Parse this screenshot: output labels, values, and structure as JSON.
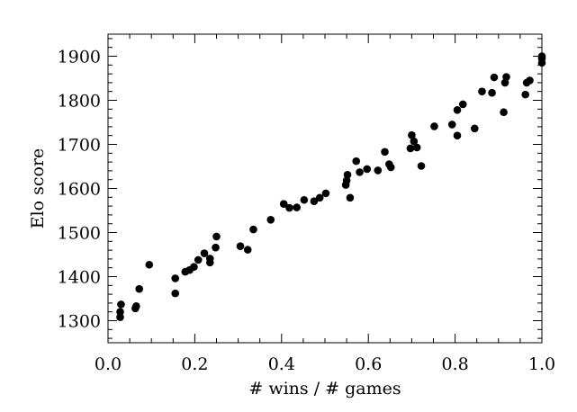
{
  "chart_data": {
    "type": "scatter",
    "xlabel": "# wins / # games",
    "ylabel": "Elo score",
    "xlim": [
      0.0,
      1.0
    ],
    "ylim": [
      1250,
      1950
    ],
    "xticks": [
      0.0,
      0.2,
      0.4,
      0.6,
      0.8,
      1.0
    ],
    "xtick_labels": [
      "0.0",
      "0.2",
      "0.4",
      "0.6",
      "0.8",
      "1.0"
    ],
    "yticks": [
      1300,
      1400,
      1500,
      1600,
      1700,
      1800,
      1900
    ],
    "ytick_labels": [
      "1300",
      "1400",
      "1500",
      "1600",
      "1700",
      "1800",
      "1900"
    ],
    "grid": false,
    "marker_color": "#000000",
    "points": [
      {
        "x": 0.028,
        "y": 1308
      },
      {
        "x": 0.028,
        "y": 1320
      },
      {
        "x": 0.03,
        "y": 1337
      },
      {
        "x": 0.063,
        "y": 1328
      },
      {
        "x": 0.065,
        "y": 1333
      },
      {
        "x": 0.072,
        "y": 1372
      },
      {
        "x": 0.095,
        "y": 1427
      },
      {
        "x": 0.155,
        "y": 1362
      },
      {
        "x": 0.155,
        "y": 1396
      },
      {
        "x": 0.178,
        "y": 1411
      },
      {
        "x": 0.188,
        "y": 1415
      },
      {
        "x": 0.198,
        "y": 1422
      },
      {
        "x": 0.208,
        "y": 1438
      },
      {
        "x": 0.222,
        "y": 1453
      },
      {
        "x": 0.235,
        "y": 1432
      },
      {
        "x": 0.235,
        "y": 1441
      },
      {
        "x": 0.248,
        "y": 1466
      },
      {
        "x": 0.25,
        "y": 1491
      },
      {
        "x": 0.305,
        "y": 1469
      },
      {
        "x": 0.322,
        "y": 1461
      },
      {
        "x": 0.335,
        "y": 1507
      },
      {
        "x": 0.375,
        "y": 1529
      },
      {
        "x": 0.405,
        "y": 1565
      },
      {
        "x": 0.418,
        "y": 1556
      },
      {
        "x": 0.435,
        "y": 1557
      },
      {
        "x": 0.452,
        "y": 1574
      },
      {
        "x": 0.475,
        "y": 1571
      },
      {
        "x": 0.488,
        "y": 1579
      },
      {
        "x": 0.502,
        "y": 1589
      },
      {
        "x": 0.548,
        "y": 1608
      },
      {
        "x": 0.55,
        "y": 1618
      },
      {
        "x": 0.552,
        "y": 1631
      },
      {
        "x": 0.558,
        "y": 1579
      },
      {
        "x": 0.572,
        "y": 1662
      },
      {
        "x": 0.58,
        "y": 1637
      },
      {
        "x": 0.597,
        "y": 1644
      },
      {
        "x": 0.622,
        "y": 1641
      },
      {
        "x": 0.638,
        "y": 1683
      },
      {
        "x": 0.648,
        "y": 1655
      },
      {
        "x": 0.652,
        "y": 1648
      },
      {
        "x": 0.697,
        "y": 1691
      },
      {
        "x": 0.7,
        "y": 1721
      },
      {
        "x": 0.705,
        "y": 1707
      },
      {
        "x": 0.712,
        "y": 1693
      },
      {
        "x": 0.722,
        "y": 1651
      },
      {
        "x": 0.752,
        "y": 1741
      },
      {
        "x": 0.793,
        "y": 1745
      },
      {
        "x": 0.805,
        "y": 1720
      },
      {
        "x": 0.805,
        "y": 1778
      },
      {
        "x": 0.818,
        "y": 1791
      },
      {
        "x": 0.845,
        "y": 1736
      },
      {
        "x": 0.862,
        "y": 1820
      },
      {
        "x": 0.885,
        "y": 1817
      },
      {
        "x": 0.89,
        "y": 1852
      },
      {
        "x": 0.912,
        "y": 1773
      },
      {
        "x": 0.915,
        "y": 1840
      },
      {
        "x": 0.918,
        "y": 1853
      },
      {
        "x": 0.962,
        "y": 1813
      },
      {
        "x": 0.965,
        "y": 1840
      },
      {
        "x": 0.972,
        "y": 1845
      },
      {
        "x": 1.0,
        "y": 1885
      },
      {
        "x": 1.0,
        "y": 1895
      },
      {
        "x": 1.0,
        "y": 1900
      }
    ]
  }
}
